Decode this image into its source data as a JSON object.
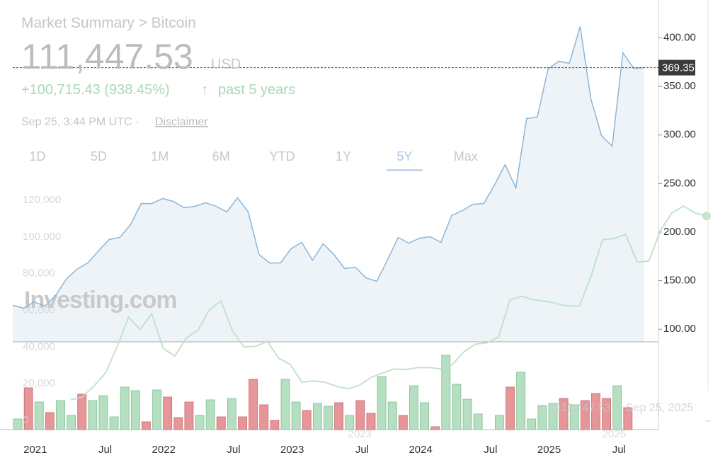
{
  "header": {
    "title": "Market Summary > Bitcoin",
    "price": "111,447.53",
    "currency": "USD",
    "change": "+100,715.43 (938.45%)",
    "arrow": "↑",
    "period": "past 5 years",
    "timestamp": "Sep 25, 3:44 PM UTC ·",
    "disclaimer": "Disclaimer"
  },
  "tabs": {
    "items": [
      "1D",
      "5D",
      "1M",
      "6M",
      "YTD",
      "1Y",
      "5Y",
      "Max"
    ],
    "selected": 6
  },
  "chart_data": [
    {
      "type": "line",
      "color": "#b9dfc4",
      "categories": [
        null,
        null,
        null,
        null,
        null,
        null,
        null,
        null,
        null,
        null,
        null,
        null,
        null,
        null,
        null,
        null,
        null,
        null,
        null,
        null,
        null,
        null,
        null,
        null,
        null,
        "2023",
        null,
        null,
        null,
        null,
        null,
        null,
        null,
        null,
        null,
        null,
        null,
        null,
        null,
        null,
        null,
        null,
        null,
        null,
        null,
        null,
        null,
        "2025",
        null,
        null,
        null,
        null,
        null,
        null,
        null,
        null
      ],
      "values": [
        11200,
        12700,
        18800,
        25800,
        40000,
        56200,
        49600,
        58100,
        39200,
        35000,
        45000,
        49200,
        60400,
        65000,
        48500,
        40000,
        40400,
        43100,
        33800,
        30400,
        20800,
        21500,
        20800,
        18500,
        17300,
        19200,
        23500,
        25800,
        28100,
        27700,
        28800,
        28800,
        28100,
        30400,
        37300,
        41500,
        42300,
        45400,
        65800,
        67700,
        65800,
        65000,
        63800,
        62300,
        62300,
        78500,
        98500,
        99200,
        101500,
        86200,
        86900,
        103500,
        113100,
        116900,
        113100,
        111447.53
      ],
      "ylim": [
        0,
        120000
      ],
      "yticks": [
        0,
        {
          "value": 20000,
          "label": "20,000"
        },
        {
          "value": 40000,
          "label": "40,000"
        },
        {
          "value": 60000,
          "label": "60,000"
        },
        {
          "value": 80000,
          "label": "80,000"
        },
        {
          "value": 100000,
          "label": "100,000"
        },
        {
          "value": 120000,
          "label": "120,000"
        }
      ],
      "hover_value": "111,447.53",
      "hover_date": "Sep 25, 2025"
    },
    {
      "type": "area",
      "color": "#8cb6d9",
      "fill": "#eef3f8",
      "watermark": "Investing.com",
      "categories": [
        null,
        "2021",
        null,
        null,
        null,
        null,
        null,
        null,
        "Jul",
        null,
        null,
        null,
        null,
        "2022",
        null,
        null,
        null,
        null,
        null,
        null,
        "Jul",
        null,
        null,
        null,
        null,
        "2023",
        null,
        null,
        null,
        null,
        null,
        null,
        "Jul",
        null,
        null,
        null,
        null,
        "2024",
        null,
        null,
        null,
        null,
        null,
        null,
        "Jul",
        null,
        null,
        null,
        null,
        "2025",
        null,
        null,
        null,
        null,
        null,
        null,
        "Jul",
        null,
        null,
        null
      ],
      "values": [
        124.5,
        121.6,
        128.1,
        123.8,
        134.7,
        151.5,
        161.7,
        168.2,
        180.6,
        192.3,
        194.5,
        207.6,
        229.4,
        229.4,
        234.5,
        231.6,
        225.1,
        226.5,
        230.2,
        226.5,
        220.7,
        235.3,
        220.7,
        177,
        168.2,
        168.2,
        182.8,
        189.4,
        171.1,
        187.9,
        177,
        162.4,
        163.8,
        152.9,
        149.3,
        171.1,
        194.5,
        188.6,
        193.7,
        195.2,
        189.4,
        217.1,
        222.2,
        228.7,
        229.4,
        248.4,
        269.5,
        245.5,
        316.9,
        318.4,
        367.9,
        375.9,
        373.8,
        411.7,
        337.3,
        299.4,
        288.5,
        384.7,
        368.7,
        369.35
      ],
      "ylim": [
        87,
        439
      ],
      "yticks": [
        {
          "value": 100,
          "label": "100.00"
        },
        {
          "value": 150,
          "label": "150.00"
        },
        {
          "value": 200,
          "label": "200.00"
        },
        {
          "value": 250,
          "label": "250.00"
        },
        {
          "value": 300,
          "label": "300.00"
        },
        {
          "value": 350,
          "label": "350.00"
        },
        {
          "value": 400,
          "label": "400.00"
        }
      ],
      "last_value": 369.35,
      "last_line_color": "#b03a3a"
    },
    {
      "type": "bar",
      "up_color": "#b5dfc0",
      "down_color": "#e69599",
      "values": [
        15,
        59,
        39,
        24,
        41,
        20,
        50,
        41,
        48,
        18,
        60,
        55,
        11,
        56,
        46,
        17,
        39,
        20,
        42,
        18,
        44,
        18,
        71,
        35,
        13,
        71,
        39,
        27,
        37,
        33,
        38,
        20,
        41,
        23,
        75,
        39,
        20,
        62,
        38,
        4,
        105,
        64,
        43,
        22,
        null,
        20,
        60,
        81,
        15,
        34,
        37,
        44,
        35,
        41,
        51,
        44,
        62,
        31,
        null,
        null
      ],
      "directions": [
        "up",
        "down",
        "up",
        "down",
        "up",
        "up",
        "down",
        "up",
        "up",
        "up",
        "up",
        "up",
        "down",
        "up",
        "down",
        "down",
        "down",
        "up",
        "up",
        "down",
        "up",
        "down",
        "down",
        "down",
        "down",
        "up",
        "up",
        "down",
        "up",
        "up",
        "down",
        "up",
        "down",
        "down",
        "up",
        "up",
        "down",
        "up",
        "up",
        "down",
        "up",
        "up",
        "up",
        "up",
        null,
        "up",
        "down",
        "up",
        "up",
        "up",
        "up",
        "down",
        "up",
        "down",
        "down",
        "down",
        "up",
        "down",
        null,
        null
      ],
      "ylim": [
        0,
        124
      ]
    }
  ]
}
